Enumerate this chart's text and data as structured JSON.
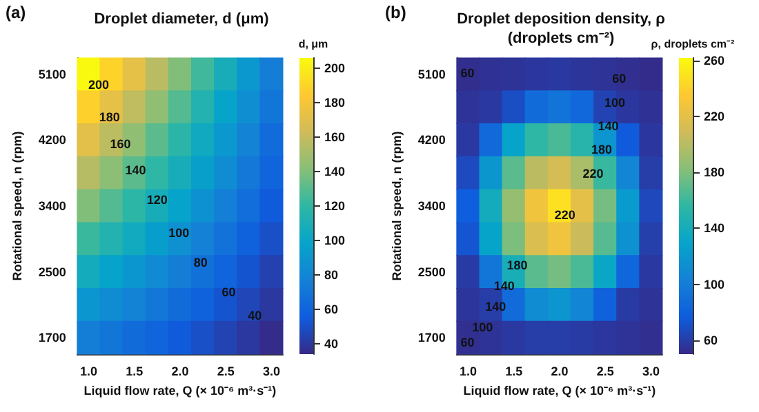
{
  "chart_data": [
    {
      "type": "heatmap",
      "title": "Droplet diameter, d (μm)",
      "xlabel": "Liquid flow rate, Q (× 10⁻⁶ m³·s⁻¹)",
      "ylabel": "Rotational speed, n (rpm)",
      "clabel": "d, μm",
      "categories": [
        "1.0",
        null,
        "1.5",
        null,
        "2.0",
        null,
        "2.5",
        null,
        "3.0"
      ],
      "y_categories": [
        "5100",
        null,
        "4200",
        null,
        "3400",
        null,
        "2500",
        null,
        "1700"
      ],
      "clim": [
        34,
        206
      ],
      "cticks": [
        40,
        60,
        80,
        100,
        120,
        140,
        160,
        180,
        200
      ],
      "cells": [
        [
          205,
          189,
          173,
          156,
          140,
          124,
          108,
          91,
          75
        ],
        [
          188,
          173,
          158,
          144,
          129,
          114,
          99,
          85,
          70
        ],
        [
          171,
          157,
          144,
          131,
          118,
          104,
          91,
          78,
          64
        ],
        [
          155,
          143,
          131,
          120,
          108,
          96,
          84,
          72,
          60
        ],
        [
          140,
          129,
          119,
          108,
          98,
          87,
          76,
          66,
          55
        ],
        [
          123,
          114,
          105,
          95,
          86,
          77,
          68,
          59,
          50
        ],
        [
          106,
          98,
          90,
          83,
          75,
          67,
          60,
          52,
          44
        ],
        [
          90,
          84,
          78,
          71,
          65,
          59,
          52,
          46,
          40
        ],
        [
          75,
          70,
          65,
          60,
          55,
          50,
          45,
          40,
          35
        ]
      ],
      "annotations": [
        "(a)",
        "200",
        "180",
        "160",
        "140",
        "120",
        "100",
        "80",
        "60",
        "40"
      ]
    },
    {
      "type": "heatmap",
      "title": "Droplet deposition density, ρ\n(droplets cm⁻²)",
      "xlabel": "Liquid flow rate, Q (× 10⁻⁶ m³·s⁻¹)",
      "ylabel": "Rotational speed, n (rpm)",
      "clabel": "ρ, droplets cm⁻²",
      "categories": [
        "1.0",
        null,
        "1.5",
        null,
        "2.0",
        null,
        "2.5",
        null,
        "3.0"
      ],
      "y_categories": [
        "5100",
        null,
        "4200",
        null,
        "3400",
        null,
        "2500",
        null,
        "1700"
      ],
      "clim": [
        50,
        262
      ],
      "cticks": [
        60,
        100,
        140,
        180,
        220,
        260
      ],
      "cells": [
        [
          52,
          54,
          55,
          57,
          58,
          56,
          55,
          53,
          51
        ],
        [
          55,
          58,
          69,
          88,
          93,
          85,
          63,
          57,
          54
        ],
        [
          58,
          86,
          129,
          156,
          164,
          152,
          118,
          76,
          57
        ],
        [
          67,
          120,
          169,
          201,
          212,
          195,
          159,
          106,
          60
        ],
        [
          78,
          139,
          188,
          228,
          248,
          220,
          177,
          123,
          66
        ],
        [
          73,
          130,
          179,
          215,
          227,
          207,
          168,
          115,
          61
        ],
        [
          59,
          95,
          142,
          169,
          177,
          164,
          132,
          84,
          58
        ],
        [
          56,
          60,
          88,
          111,
          118,
          106,
          81,
          59,
          55
        ],
        [
          53,
          55,
          58,
          60,
          60,
          59,
          57,
          55,
          53
        ]
      ],
      "annotations": [
        "(b)",
        "60",
        "60",
        "100",
        "140",
        "180",
        "220",
        "220",
        "180",
        "140",
        "140",
        "100",
        "60"
      ]
    }
  ]
}
